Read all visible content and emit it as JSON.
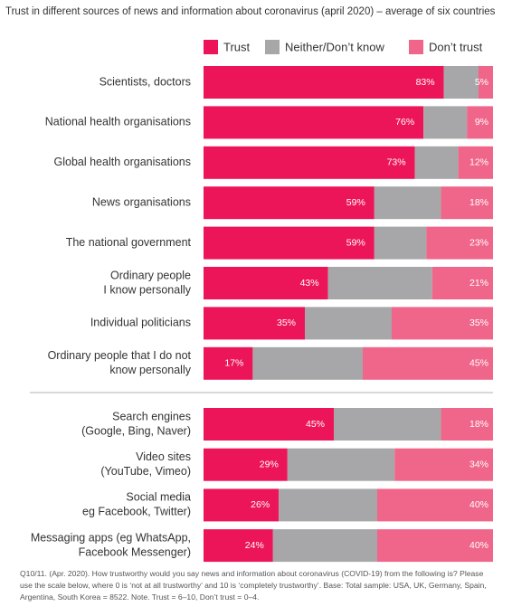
{
  "chart_data": {
    "type": "stacked-bar-horizontal",
    "title": "Trust in different sources of news and information about coronavirus (april 2020) – average of six countries",
    "categories": [
      [
        "Scientists, doctors"
      ],
      [
        "National health organisations"
      ],
      [
        "Global health organisations"
      ],
      [
        "News organisations"
      ],
      [
        "The national government"
      ],
      [
        "Ordinary people",
        "I know personally"
      ],
      [
        "Individual politicians"
      ],
      [
        "Ordinary people that I do not",
        "know personally"
      ],
      [
        "Search engines",
        "(Google, Bing, Naver)"
      ],
      [
        "Video sites",
        "(YouTube, Vimeo)"
      ],
      [
        "Social media",
        "eg Facebook, Twitter)"
      ],
      [
        "Messaging apps (eg WhatsApp,",
        "Facebook Messenger)"
      ]
    ],
    "xlim": [
      0,
      100
    ],
    "series": [
      {
        "name": "Trust",
        "color": "#ec1559",
        "values": [
          83,
          76,
          73,
          59,
          59,
          43,
          35,
          17,
          45,
          29,
          26,
          24
        ],
        "value_labels": [
          "83%",
          "76%",
          "73%",
          "59%",
          "59%",
          "43%",
          "35%",
          "17%",
          "45%",
          "29%",
          "26%",
          "24%"
        ]
      },
      {
        "name": "Neither/Don’t know",
        "color": "#a7a7a9",
        "values": [
          12,
          15,
          15,
          23,
          18,
          36,
          30,
          38,
          37,
          37,
          34,
          36
        ]
      },
      {
        "name": "Don’t trust",
        "color": "#f0668a",
        "values": [
          5,
          9,
          12,
          18,
          23,
          21,
          35,
          45,
          18,
          34,
          40,
          40
        ],
        "value_labels": [
          "5%",
          "9%",
          "12%",
          "18%",
          "23%",
          "21%",
          "35%",
          "45%",
          "18%",
          "34%",
          "40%",
          "40%"
        ]
      }
    ],
    "note": "Q10/11. (Apr. 2020). How trustworthy would you say news and information about coronavirus (COVID-19) from the following is? Please use the scale below, where 0 is ‘not at all trustworthy’ and 10 is ‘completely trustworthy’. Base: Total sample: USA, UK, Germany, Spain, Argentina,  South Korea = 8522. Note. Trust = 6–10, Don’t trust = 0–4."
  }
}
